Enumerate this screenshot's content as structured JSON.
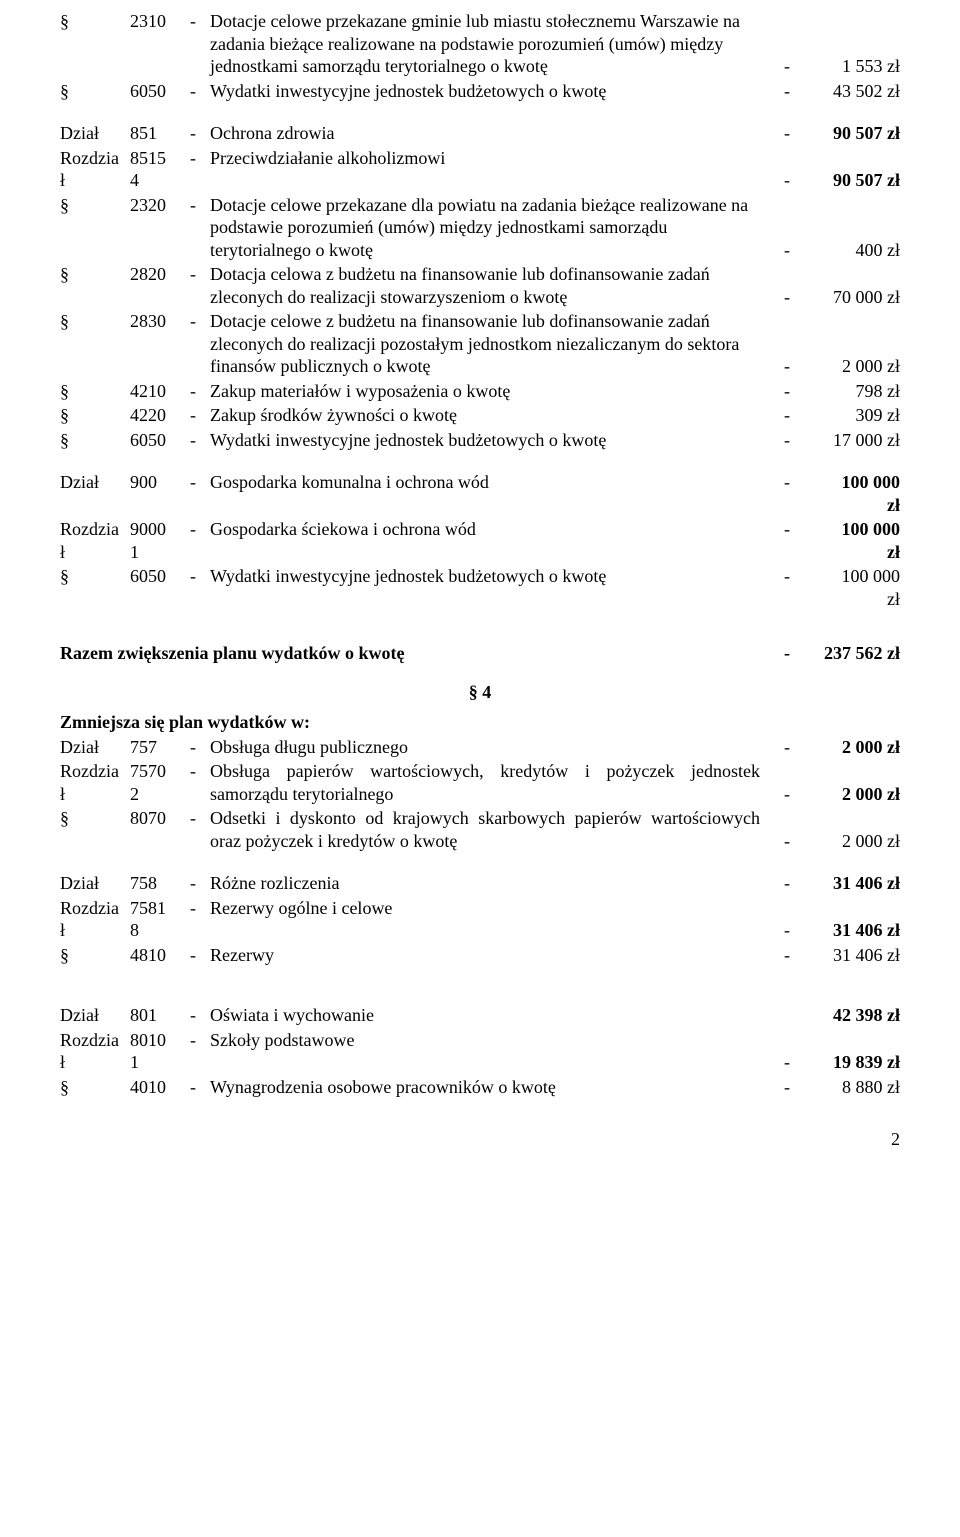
{
  "rows": [
    {
      "sym": "§",
      "code": "2310",
      "dash": "-",
      "desc": "Dotacje celowe przekazane gminie lub miastu stołecznemu Warszawie na zadania bieżące realizowane na podstawie porozumień (umów) między jednostkami samorządu terytorialnego o kwotę",
      "dash2": "-",
      "amt": "1 553 zł"
    },
    {
      "sym": "§",
      "code": "6050",
      "dash": "-",
      "desc": "Wydatki inwestycyjne jednostek budżetowych o kwotę",
      "dash2": "-",
      "amt": "43 502 zł"
    }
  ],
  "section851": [
    {
      "sym": "Dział",
      "code": "851",
      "dash": "-",
      "desc": "Ochrona zdrowia",
      "dash2": "-",
      "amt": "90 507 zł",
      "bold": true
    },
    {
      "sym": "Rozdział",
      "code": "85154",
      "dash": "-",
      "desc": "Przeciwdziałanie alkoholizmowi",
      "dash2": "-",
      "amt": "90 507 zł",
      "bold": true,
      "split": true
    },
    {
      "sym": "§",
      "code": "2320",
      "dash": "-",
      "desc": "Dotacje celowe przekazane dla powiatu na zadania bieżące realizowane na podstawie porozumień (umów) między jednostkami samorządu terytorialnego o kwotę",
      "dash2": "-",
      "amt": "400 zł"
    },
    {
      "sym": "§",
      "code": "2820",
      "dash": "-",
      "desc": "Dotacja celowa z budżetu na finansowanie lub dofinansowanie zadań zleconych do realizacji stowarzyszeniom o kwotę",
      "dash2": "-",
      "amt": "70 000 zł"
    },
    {
      "sym": "§",
      "code": "2830",
      "dash": "-",
      "desc": "Dotacje celowe z budżetu na finansowanie lub dofinansowanie zadań zleconych do realizacji pozostałym jednostkom niezaliczanym do sektora finansów publicznych o kwotę",
      "dash2": "-",
      "amt": "2 000 zł"
    },
    {
      "sym": "§",
      "code": "4210",
      "dash": "-",
      "desc": "Zakup materiałów i wyposażenia o kwotę",
      "dash2": "-",
      "amt": "798 zł"
    },
    {
      "sym": "§",
      "code": "4220",
      "dash": "-",
      "desc": "Zakup środków żywności o kwotę",
      "dash2": "-",
      "amt": "309 zł"
    },
    {
      "sym": "§",
      "code": "6050",
      "dash": "-",
      "desc": "Wydatki inwestycyjne jednostek budżetowych o kwotę",
      "dash2": "-",
      "amt": "17 000 zł"
    }
  ],
  "section900": [
    {
      "sym": "Dział",
      "code": "900",
      "dash": "-",
      "desc": "Gospodarka komunalna i ochrona wód",
      "dash2": "-",
      "amt": "100 000 zł",
      "bold": true
    },
    {
      "sym": "Rozdział",
      "code": "90001",
      "dash": "-",
      "desc": "Gospodarka ściekowa i ochrona wód",
      "dash2": "-",
      "amt": "100 000 zł",
      "bold": true,
      "split": true
    },
    {
      "sym": "§",
      "code": "6050",
      "dash": "-",
      "desc": "Wydatki inwestycyjne jednostek budżetowych o kwotę",
      "dash2": "-",
      "amt": "100 000 zł"
    }
  ],
  "total1": {
    "label": "Razem zwiększenia planu wydatków o kwotę",
    "dash": "-",
    "amt": "237 562 zł"
  },
  "para4": "§ 4",
  "zmniejsza": "Zmniejsza się plan wydatków w:",
  "section757": [
    {
      "sym": "Dział",
      "code": "757",
      "dash": "-",
      "desc": "Obsługa długu publicznego",
      "dash2": "-",
      "amt": "2 000 zł",
      "bold": true
    },
    {
      "sym": "Rozdział",
      "code": "75702",
      "dash": "-",
      "desc": "Obsługa papierów wartościowych, kredytów i pożyczek jednostek samorządu terytorialnego",
      "dash2": "-",
      "amt": "2 000 zł",
      "bold": true,
      "split": true,
      "justify": true
    },
    {
      "sym": "§",
      "code": "8070",
      "dash": "-",
      "desc": "Odsetki i dyskonto od krajowych skarbowych papierów wartościowych oraz pożyczek i kredytów o kwotę",
      "dash2": "-",
      "amt": "2 000 zł",
      "justify": true
    }
  ],
  "section758": [
    {
      "sym": "Dział",
      "code": "758",
      "dash": "-",
      "desc": "Różne rozliczenia",
      "dash2": "-",
      "amt": "31 406 zł",
      "bold": true
    },
    {
      "sym": "Rozdział",
      "code": "75818",
      "dash": "-",
      "desc": "Rezerwy ogólne i celowe",
      "dash2": "-",
      "amt": "31 406 zł",
      "bold": true,
      "split": true
    },
    {
      "sym": "§",
      "code": "4810",
      "dash": "-",
      "desc": "Rezerwy",
      "dash2": "-",
      "amt": "31 406 zł"
    }
  ],
  "section801": [
    {
      "sym": "Dział",
      "code": "801",
      "dash": "-",
      "desc": "Oświata i wychowanie",
      "dash2": "",
      "amt": "42 398 zł",
      "bold": true
    },
    {
      "sym": "Rozdział",
      "code": "80101",
      "dash": "-",
      "desc": "Szkoły podstawowe",
      "dash2": "-",
      "amt": "19 839 zł",
      "bold": true,
      "split": true
    },
    {
      "sym": "§",
      "code": "4010",
      "dash": "-",
      "desc": "Wynagrodzenia osobowe pracowników o kwotę",
      "dash2": "-",
      "amt": "8 880 zł"
    }
  ],
  "pageNum": "2"
}
